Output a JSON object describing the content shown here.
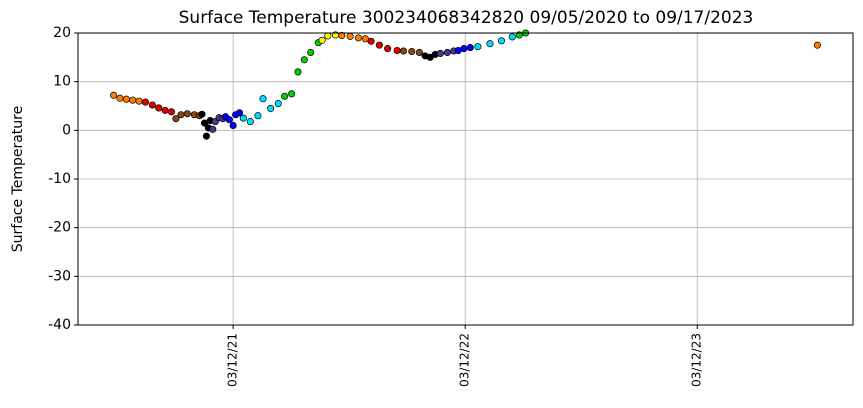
{
  "chart_data": {
    "type": "scatter",
    "title": "Surface Temperature 300234068342820  09/05/2020 to 09/17/2023",
    "y_label": "Surface Temperature",
    "xlim": [
      "07/11/20",
      "11/12/23"
    ],
    "xticks": [
      "03/12/21",
      "03/12/22",
      "03/12/23"
    ],
    "ylim": [
      -40,
      20
    ],
    "yticks": [
      -40,
      -30,
      -20,
      -10,
      0,
      10,
      20
    ],
    "grid": true,
    "series": [
      {
        "color": "#ff8000",
        "x": [
          "09/05/20",
          "09/15/20",
          "09/25/20",
          "10/05/20",
          "10/15/20"
        ],
        "values": [
          7.2,
          6.6,
          6.4,
          6.2,
          6.0
        ]
      },
      {
        "color": "#e00000",
        "x": [
          "10/25/20",
          "11/05/20",
          "11/15/20",
          "11/25/20",
          "12/05/20"
        ],
        "values": [
          5.8,
          5.2,
          4.6,
          4.1,
          3.8
        ]
      },
      {
        "color": "#8b4513",
        "x": [
          "12/12/20",
          "12/20/20",
          "12/30/20",
          "01/10/21",
          "01/18/21"
        ],
        "values": [
          2.4,
          3.2,
          3.4,
          3.2,
          3.0
        ]
      },
      {
        "color": "#000000",
        "x": [
          "01/22/21",
          "01/26/21",
          "01/29/21",
          "02/01/21",
          "02/04/21"
        ],
        "values": [
          3.3,
          1.5,
          -1.2,
          0.5,
          2.0
        ]
      },
      {
        "color": "#483d8b",
        "x": [
          "02/08/21",
          "02/12/21",
          "02/18/21",
          "02/24/21"
        ],
        "values": [
          0.2,
          1.8,
          2.6,
          2.4
        ]
      },
      {
        "color": "#0000ff",
        "x": [
          "02/28/21",
          "03/06/21",
          "03/12/21",
          "03/16/21",
          "03/22/21"
        ],
        "values": [
          2.8,
          2.2,
          1.0,
          3.2,
          3.6
        ]
      },
      {
        "color": "#00ddff",
        "x": [
          "03/28/21",
          "04/08/21",
          "04/20/21",
          "04/28/21",
          "05/10/21",
          "05/22/21"
        ],
        "values": [
          2.5,
          1.8,
          3.0,
          6.5,
          4.5,
          5.5
        ]
      },
      {
        "color": "#00d000",
        "x": [
          "06/01/21",
          "06/12/21",
          "06/22/21",
          "07/02/21",
          "07/12/21",
          "07/24/21"
        ],
        "values": [
          7.0,
          7.5,
          12,
          14.5,
          16,
          18
        ]
      },
      {
        "color": "#ffff00",
        "x": [
          "07/30/21",
          "08/08/21",
          "08/20/21"
        ],
        "values": [
          18.5,
          19.4,
          19.6
        ]
      },
      {
        "color": "#ff8000",
        "x": [
          "08/30/21",
          "09/12/21",
          "09/25/21",
          "10/06/21"
        ],
        "values": [
          19.5,
          19.3,
          19.0,
          18.8
        ]
      },
      {
        "color": "#e00000",
        "x": [
          "10/15/21",
          "10/28/21",
          "11/10/21",
          "11/25/21"
        ],
        "values": [
          18.3,
          17.5,
          16.8,
          16.4
        ]
      },
      {
        "color": "#8b4513",
        "x": [
          "12/05/21",
          "12/18/21",
          "12/30/21"
        ],
        "values": [
          16.3,
          16.2,
          16.0
        ]
      },
      {
        "color": "#000000",
        "x": [
          "01/08/22",
          "01/16/22",
          "01/24/22"
        ],
        "values": [
          15.3,
          15.0,
          15.6
        ]
      },
      {
        "color": "#483d8b",
        "x": [
          "02/01/22",
          "02/12/22",
          "02/22/22"
        ],
        "values": [
          15.8,
          16.0,
          16.3
        ]
      },
      {
        "color": "#0000ff",
        "x": [
          "03/01/22",
          "03/10/22",
          "03/20/22"
        ],
        "values": [
          16.4,
          16.8,
          17.0
        ]
      },
      {
        "color": "#00ddff",
        "x": [
          "04/01/22",
          "04/20/22",
          "05/08/22",
          "05/25/22"
        ],
        "values": [
          17.2,
          17.8,
          18.4,
          19.2
        ]
      },
      {
        "color": "#00d000",
        "x": [
          "06/05/22",
          "06/15/22"
        ],
        "values": [
          19.6,
          20
        ]
      },
      {
        "color": "#ff8000",
        "x": [
          "09/17/23"
        ],
        "values": [
          17.5
        ]
      }
    ]
  }
}
